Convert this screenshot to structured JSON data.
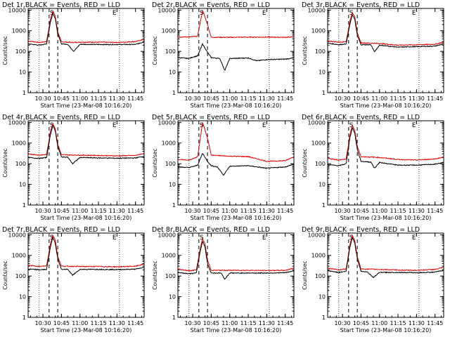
{
  "page": {
    "background": "#ffffff"
  },
  "chart_data": {
    "type": "line",
    "ylabel": "Counts/sec",
    "xlabel": "Start Time (23-Mar-08 10:16:20)",
    "x_ticks": [
      "10:30",
      "10:45",
      "11:00",
      "11:15",
      "11:30",
      "11:45"
    ],
    "x_range": [
      "10:18",
      "11:52"
    ],
    "y_scale": "log",
    "ylim": [
      1,
      12000
    ],
    "y_ticks": [
      "1",
      "10",
      "100",
      "1000",
      "10000"
    ],
    "annotations": {
      "marker_labels": [
        "S",
        "E"
      ],
      "dotted_lines_at": [
        "10:27",
        "11:32"
      ],
      "dashed_lines_at": [
        "10:35",
        "10:42"
      ]
    },
    "series_colors": {
      "events": "#000000",
      "lld": "#dd0000"
    },
    "panels": [
      {
        "title": "Det 1r,BLACK = Events, RED = LLD",
        "events": {
          "x": [
            "10:18",
            "10:27",
            "10:33",
            "10:36",
            "10:38",
            "10:40",
            "10:42",
            "10:45",
            "10:50",
            "10:55",
            "11:00",
            "11:15",
            "11:30",
            "11:45",
            "11:52"
          ],
          "y": [
            230,
            200,
            230,
            2500,
            7000,
            4000,
            700,
            230,
            220,
            100,
            220,
            215,
            215,
            215,
            290
          ]
        },
        "lld": {
          "x": [
            "10:18",
            "10:27",
            "10:33",
            "10:36",
            "10:38",
            "10:40",
            "10:42",
            "10:45",
            "10:50",
            "10:55",
            "11:00",
            "11:15",
            "11:30",
            "11:45",
            "11:52"
          ],
          "y": [
            320,
            270,
            300,
            3500,
            9000,
            5000,
            900,
            290,
            280,
            270,
            280,
            280,
            270,
            300,
            380
          ]
        }
      },
      {
        "title": "Det 2r,BLACK = Events, RED = LLD",
        "events": {
          "x": [
            "10:18",
            "10:27",
            "10:31",
            "10:34",
            "10:38",
            "10:42",
            "10:45",
            "10:52",
            "10:56",
            "11:00",
            "11:15",
            "11:22",
            "11:30",
            "11:45",
            "11:52"
          ],
          "y": [
            50,
            45,
            55,
            60,
            230,
            90,
            50,
            45,
            12,
            45,
            48,
            35,
            40,
            42,
            48
          ]
        },
        "lld": {
          "x": [
            "10:18",
            "10:27",
            "10:31",
            "10:34",
            "10:38",
            "10:42",
            "10:45",
            "11:00",
            "11:15",
            "11:30",
            "11:45",
            "11:52"
          ],
          "y": [
            500,
            500,
            520,
            540,
            10000,
            2000,
            480,
            480,
            490,
            490,
            480,
            500
          ]
        }
      },
      {
        "title": "Det 3r,BLACK = Events, RED = LLD",
        "events": {
          "x": [
            "10:18",
            "10:27",
            "10:33",
            "10:36",
            "10:38",
            "10:40",
            "10:42",
            "10:45",
            "10:53",
            "10:56",
            "11:00",
            "11:15",
            "11:30",
            "11:45",
            "11:52"
          ],
          "y": [
            250,
            210,
            230,
            2000,
            6000,
            3500,
            600,
            210,
            210,
            95,
            200,
            160,
            170,
            180,
            230
          ]
        },
        "lld": {
          "x": [
            "10:18",
            "10:27",
            "10:33",
            "10:36",
            "10:38",
            "10:40",
            "10:42",
            "10:45",
            "11:00",
            "11:15",
            "11:30",
            "11:45",
            "11:52"
          ],
          "y": [
            320,
            280,
            300,
            2800,
            8000,
            4500,
            800,
            260,
            240,
            200,
            210,
            220,
            280
          ]
        }
      },
      {
        "title": "Det 4r,BLACK = Events, RED = LLD",
        "events": {
          "x": [
            "10:18",
            "10:27",
            "10:33",
            "10:36",
            "10:38",
            "10:40",
            "10:42",
            "10:45",
            "10:50",
            "10:54",
            "11:00",
            "11:15",
            "11:30",
            "11:45",
            "11:52"
          ],
          "y": [
            200,
            180,
            200,
            2500,
            7000,
            4000,
            700,
            210,
            210,
            100,
            200,
            190,
            185,
            190,
            230
          ]
        },
        "lld": {
          "x": [
            "10:18",
            "10:27",
            "10:33",
            "10:36",
            "10:38",
            "10:40",
            "10:42",
            "10:45",
            "11:00",
            "11:15",
            "11:30",
            "11:45",
            "11:52"
          ],
          "y": [
            300,
            260,
            280,
            3500,
            9000,
            5000,
            900,
            270,
            260,
            250,
            240,
            250,
            320
          ]
        }
      },
      {
        "title": "Det 5r,BLACK = Events, RED = LLD",
        "events": {
          "x": [
            "10:18",
            "10:27",
            "10:31",
            "10:34",
            "10:38",
            "10:42",
            "10:45",
            "10:50",
            "10:55",
            "11:00",
            "11:15",
            "11:30",
            "11:45",
            "11:52"
          ],
          "y": [
            70,
            65,
            75,
            85,
            320,
            130,
            80,
            70,
            28,
            75,
            80,
            60,
            70,
            95
          ]
        },
        "lld": {
          "x": [
            "10:18",
            "10:27",
            "10:31",
            "10:34",
            "10:38",
            "10:42",
            "10:45",
            "11:00",
            "11:15",
            "11:30",
            "11:45",
            "11:52"
          ],
          "y": [
            160,
            150,
            180,
            220,
            10000,
            1800,
            260,
            230,
            220,
            130,
            140,
            220
          ]
        }
      },
      {
        "title": "Det 6r,BLACK = Events, RED = LLD",
        "events": {
          "x": [
            "10:18",
            "10:27",
            "10:33",
            "10:36",
            "10:38",
            "10:40",
            "10:42",
            "10:45",
            "10:53",
            "10:56",
            "11:00",
            "11:15",
            "11:30",
            "11:45",
            "11:52"
          ],
          "y": [
            90,
            80,
            100,
            1800,
            5500,
            3000,
            500,
            130,
            120,
            60,
            115,
            85,
            85,
            95,
            115
          ]
        },
        "lld": {
          "x": [
            "10:18",
            "10:27",
            "10:33",
            "10:36",
            "10:38",
            "10:40",
            "10:42",
            "10:45",
            "11:00",
            "11:15",
            "11:30",
            "11:45",
            "11:52"
          ],
          "y": [
            180,
            150,
            170,
            2500,
            7000,
            4000,
            700,
            220,
            200,
            160,
            150,
            170,
            210
          ]
        }
      },
      {
        "title": "Det 7r,BLACK = Events, RED = LLD",
        "events": {
          "x": [
            "10:18",
            "10:27",
            "10:33",
            "10:36",
            "10:38",
            "10:40",
            "10:42",
            "10:45",
            "10:50",
            "10:54",
            "11:00",
            "11:15",
            "11:30",
            "11:45",
            "11:52"
          ],
          "y": [
            220,
            200,
            210,
            2500,
            7500,
            4000,
            700,
            210,
            210,
            110,
            210,
            210,
            205,
            215,
            260
          ]
        },
        "lld": {
          "x": [
            "10:18",
            "10:27",
            "10:33",
            "10:36",
            "10:38",
            "10:40",
            "10:42",
            "10:45",
            "11:00",
            "11:15",
            "11:30",
            "11:45",
            "11:52"
          ],
          "y": [
            330,
            290,
            310,
            3500,
            9500,
            5500,
            900,
            300,
            290,
            290,
            280,
            300,
            380
          ]
        }
      },
      {
        "title": "Det 8r,BLACK = Events, RED = LLD",
        "events": {
          "x": [
            "10:18",
            "10:27",
            "10:33",
            "10:36",
            "10:38",
            "10:40",
            "10:42",
            "10:45",
            "10:53",
            "10:56",
            "11:00",
            "11:15",
            "11:30",
            "11:45",
            "11:52"
          ],
          "y": [
            150,
            130,
            140,
            1500,
            5000,
            2500,
            400,
            140,
            140,
            70,
            140,
            140,
            140,
            145,
            180
          ]
        },
        "lld": {
          "x": [
            "10:18",
            "10:27",
            "10:33",
            "10:36",
            "10:38",
            "10:40",
            "10:42",
            "10:45",
            "11:00",
            "11:15",
            "11:30",
            "11:45",
            "11:52"
          ],
          "y": [
            220,
            180,
            200,
            2000,
            6500,
            3500,
            600,
            190,
            190,
            190,
            185,
            190,
            240
          ]
        }
      },
      {
        "title": "Det 9r,BLACK = Events, RED = LLD",
        "events": {
          "x": [
            "10:18",
            "10:27",
            "10:33",
            "10:36",
            "10:38",
            "10:40",
            "10:42",
            "10:45",
            "10:50",
            "10:55",
            "11:00",
            "11:15",
            "11:30",
            "11:45",
            "11:52"
          ],
          "y": [
            180,
            150,
            170,
            2500,
            7500,
            4000,
            700,
            170,
            160,
            85,
            150,
            150,
            145,
            155,
            190
          ]
        },
        "lld": {
          "x": [
            "10:18",
            "10:27",
            "10:33",
            "10:36",
            "10:38",
            "10:40",
            "10:42",
            "10:45",
            "11:00",
            "11:15",
            "11:30",
            "11:45",
            "11:52"
          ],
          "y": [
            240,
            200,
            220,
            3200,
            9500,
            5000,
            900,
            220,
            210,
            195,
            190,
            210,
            260
          ]
        }
      }
    ]
  }
}
